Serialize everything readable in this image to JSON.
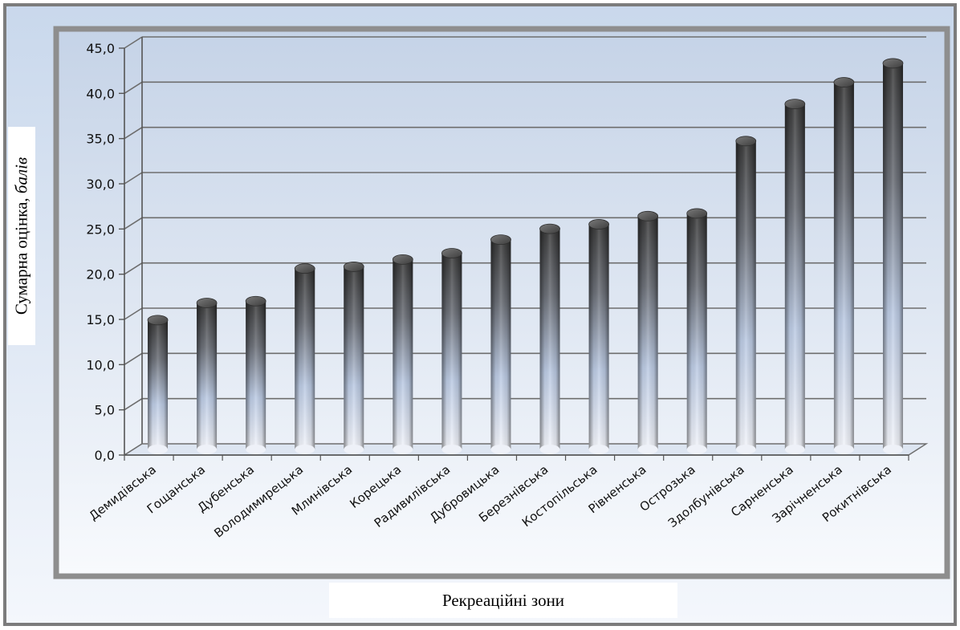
{
  "chart_data": {
    "type": "bar",
    "style": "3d-cylinder",
    "categories": [
      "Демидівська",
      "Гощанська",
      "Дубенська",
      "Володимирецька",
      "Млинівська",
      "Корецька",
      "Радивилівська",
      "Дубровицька",
      "Березнівська",
      "Костопільська",
      "Рівненська",
      "Острозька",
      "Здолбунівська",
      "Сарненська",
      "Зарічненська",
      "Рокитнівська"
    ],
    "values": [
      14.3,
      16.2,
      16.4,
      20.0,
      20.2,
      21.0,
      21.7,
      23.2,
      24.4,
      24.9,
      25.8,
      26.1,
      34.1,
      38.2,
      40.6,
      42.7
    ],
    "ylim": [
      0,
      45
    ],
    "ytick_labels": [
      "0,0",
      "5,0",
      "10,0",
      "15,0",
      "20,0",
      "25,0",
      "30,0",
      "35,0",
      "40,0",
      "45,0"
    ],
    "ylabel_main": "Сумарна оцінка, ",
    "ylabel_italic": "балів",
    "xlabel": "Рекреаційні зони",
    "grid": true,
    "legend": "none",
    "colors": {
      "frame": "#8a8a8a",
      "plot_bg_top": "#c7d4e7",
      "plot_bg_bottom": "#f7f9fc",
      "bar_dark": "#3c3c3c",
      "bar_light": "#eef2fa",
      "grid": "#6e6e6e"
    }
  }
}
